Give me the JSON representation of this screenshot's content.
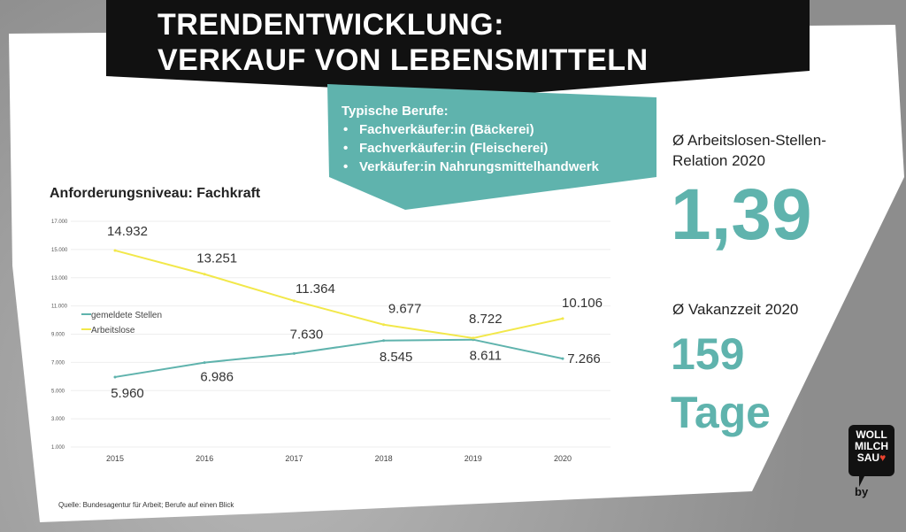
{
  "title": {
    "line1": "TRENDENTWICKLUNG:",
    "line2": "VERKAUF VON LEBENSMITTELN"
  },
  "jobs": {
    "heading": "Typische Berufe:",
    "items": [
      "Fachverkäufer:in (Bäckerei)",
      "Fachverkäufer:in (Fleischerei)",
      "Verkäufer:in Nahrungsmittelhandwerk"
    ]
  },
  "stats": {
    "ratio_label_1": "Ø Arbeitslosen-Stellen-",
    "ratio_label_2": "Relation 2020",
    "ratio_value": "1,39",
    "vacancy_label": "Ø Vakanzzeit 2020",
    "vacancy_value": "159",
    "vacancy_unit": "Tage"
  },
  "source": "Quelle: Bundesagentur für Arbeit; Berufe auf einen Blick",
  "logo": {
    "text": "WOLL MILCH SAU",
    "by": "by"
  },
  "colors": {
    "teal": "#5fb3ad",
    "yellow": "#f2e84a"
  },
  "chart_data": {
    "type": "line",
    "title": "Anforderungsniveau: Fachkraft",
    "categories": [
      "2015",
      "2016",
      "2017",
      "2018",
      "2019",
      "2020"
    ],
    "yticks": [
      "1.000",
      "3.000",
      "5.000",
      "7.000",
      "9.000",
      "11.000",
      "13.000",
      "15.000",
      "17.000"
    ],
    "ylim": [
      1000,
      17000
    ],
    "series": [
      {
        "name": "gemeldete Stellen",
        "color": "#5fb3ad",
        "values": [
          5960,
          6986,
          7630,
          8545,
          8611,
          7266
        ],
        "labels": [
          "5.960",
          "6.986",
          "7.630",
          "8.545",
          "8.611",
          "7.266"
        ]
      },
      {
        "name": "Arbeitslose",
        "color": "#f2e84a",
        "values": [
          14932,
          13251,
          11364,
          9677,
          8722,
          10106
        ],
        "labels": [
          "14.932",
          "13.251",
          "11.364",
          "9.677",
          "8.722",
          "10.106"
        ]
      }
    ],
    "legend": "left"
  }
}
